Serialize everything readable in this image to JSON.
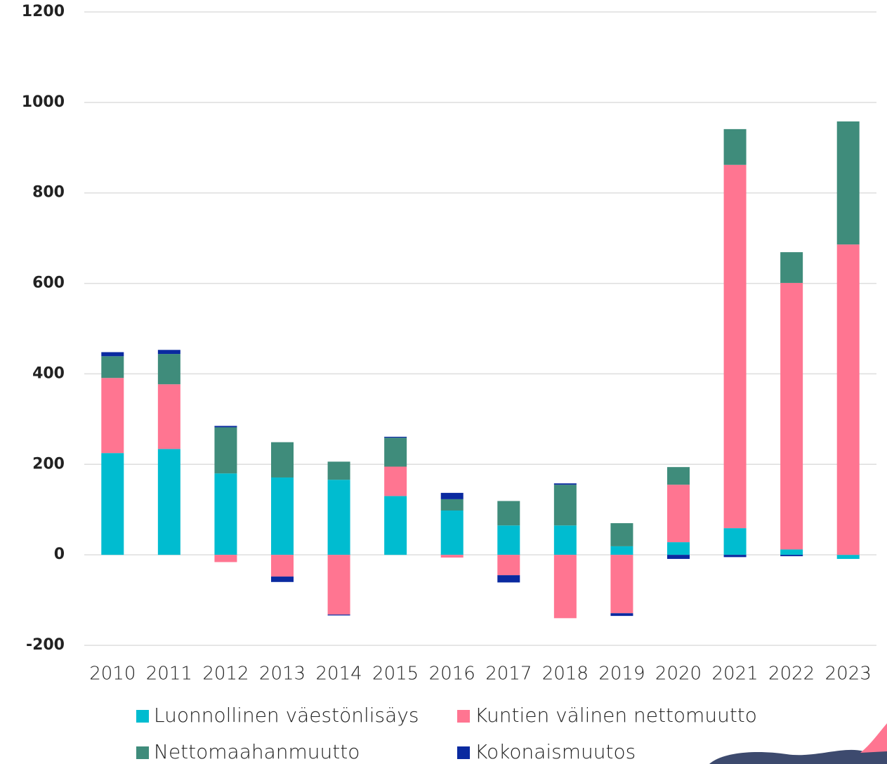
{
  "chart_data": {
    "type": "stacked_bar",
    "categories": [
      "2010",
      "2011",
      "2012",
      "2013",
      "2014",
      "2015",
      "2016",
      "2017",
      "2018",
      "2019",
      "2020",
      "2021",
      "2022",
      "2023"
    ],
    "series": [
      {
        "name": "Luonnollinen väestönlisäys",
        "color": "#00bcd0",
        "values": [
          225,
          234,
          180,
          171,
          166,
          130,
          98,
          65,
          65,
          19,
          28,
          59,
          12,
          -9
        ]
      },
      {
        "name": "Kuntien välinen nettomuutto",
        "color": "#ff7591",
        "values": [
          166,
          143,
          -16,
          -48,
          -132,
          65,
          -6,
          -45,
          -140,
          -129,
          127,
          803,
          589,
          686
        ]
      },
      {
        "name": "Nettomaahanmuutto",
        "color": "#3f8c7b",
        "values": [
          48,
          67,
          102,
          78,
          40,
          64,
          25,
          54,
          90,
          51,
          39,
          79,
          68,
          272
        ]
      },
      {
        "name": "Kokonaismuutos",
        "color": "#0a2aa0",
        "values": [
          9,
          9,
          3,
          -12,
          -2,
          2,
          14,
          -16,
          3,
          -6,
          -9,
          -5,
          -3,
          0
        ]
      }
    ],
    "ylim": [
      -200,
      1200
    ],
    "yticks": [
      -200,
      0,
      200,
      400,
      600,
      800,
      1000,
      1200
    ],
    "grid": true
  }
}
